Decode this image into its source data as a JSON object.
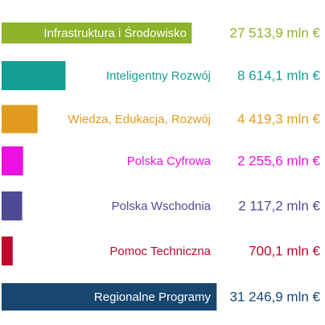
{
  "chart_data": {
    "type": "bar",
    "orientation": "horizontal",
    "categories": [
      "Infrastruktura i Środowisko",
      "Inteligentny Rozwój",
      "Wiedza, Edukacja, Rozwój",
      "Polska Cyfrowa",
      "Polska Wschodnia",
      "Pomoc Techniczna",
      "Regionalne Programy"
    ],
    "values": [
      27513.9,
      8614.1,
      4419.3,
      2255.6,
      2117.2,
      700.1,
      31246.9
    ],
    "value_labels": [
      "27 513,9 mln €",
      "8 614,1 mln €",
      "4 419,3 mln €",
      "2 255,6 mln €",
      "2 117,2 mln €",
      "700,1 mln €",
      "31 246,9 mln €"
    ],
    "colors": [
      "#8db32a",
      "#139e96",
      "#e39b1f",
      "#ee10e0",
      "#4e4a93",
      "#c0082e",
      "#17466e"
    ]
  }
}
